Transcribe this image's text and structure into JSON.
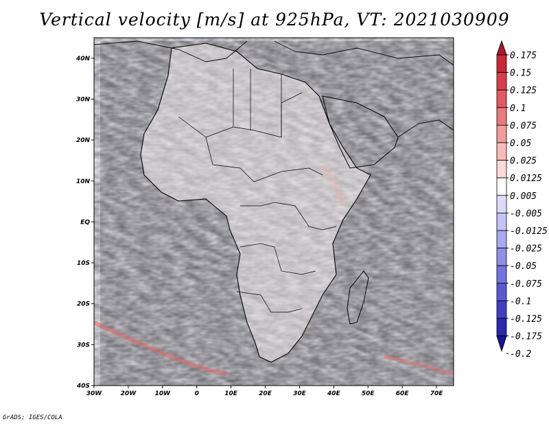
{
  "title": "Vertical velocity [m/s] at 925hPa, VT: 2021030909",
  "credit": "GrADS: IGES/COLA",
  "chart_data": {
    "type": "heatmap",
    "title": "Vertical velocity [m/s] at 925hPa, VT: 2021030909",
    "variable": "Vertical velocity",
    "units": "m/s",
    "level": "925hPa",
    "valid_time": "2021030909",
    "x_ticks": [
      "30W",
      "20W",
      "10W",
      "0",
      "10E",
      "20E",
      "30E",
      "40E",
      "50E",
      "60E",
      "70E"
    ],
    "x_values": [
      -30,
      -20,
      -10,
      0,
      10,
      20,
      30,
      40,
      50,
      60,
      70
    ],
    "y_ticks": [
      "40N",
      "30N",
      "20N",
      "10N",
      "EQ",
      "10S",
      "20S",
      "30S",
      "40S"
    ],
    "y_values": [
      40,
      30,
      20,
      10,
      0,
      -10,
      -20,
      -30,
      -40
    ],
    "xlim": [
      -30,
      75
    ],
    "ylim": [
      -40,
      45
    ],
    "colorbar": {
      "labels": [
        "0.175",
        "0.15",
        "0.125",
        "0.1",
        "0.075",
        "0.05",
        "0.025",
        "0.0125",
        "0.005",
        "-0.005",
        "-0.0125",
        "-0.025",
        "-0.05",
        "-0.075",
        "-0.1",
        "-0.125",
        "-0.175",
        "-0.2"
      ],
      "colors": [
        "#b2182b",
        "#c62a35",
        "#d6404a",
        "#e25a60",
        "#ea7a7c",
        "#f09c9a",
        "#f6bcb8",
        "#fadbd8",
        "#ffffff",
        "#dcdcfa",
        "#c3c3f5",
        "#a9a9ef",
        "#8f8fe6",
        "#7474dc",
        "#5a5ad0",
        "#4040c2",
        "#2a2ab0",
        "#15159c"
      ]
    }
  }
}
